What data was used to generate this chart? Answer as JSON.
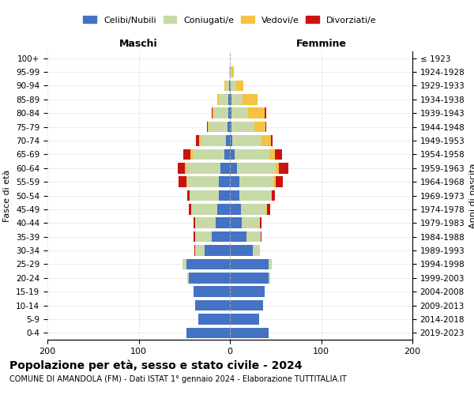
{
  "age_groups": [
    "0-4",
    "5-9",
    "10-14",
    "15-19",
    "20-24",
    "25-29",
    "30-34",
    "35-39",
    "40-44",
    "45-49",
    "50-54",
    "55-59",
    "60-64",
    "65-69",
    "70-74",
    "75-79",
    "80-84",
    "85-89",
    "90-94",
    "95-99",
    "100+"
  ],
  "birth_years": [
    "2019-2023",
    "2014-2018",
    "2009-2013",
    "2004-2008",
    "1999-2003",
    "1994-1998",
    "1989-1993",
    "1984-1988",
    "1979-1983",
    "1974-1978",
    "1969-1973",
    "1964-1968",
    "1959-1963",
    "1954-1958",
    "1949-1953",
    "1944-1948",
    "1939-1943",
    "1934-1938",
    "1929-1933",
    "1924-1928",
    "≤ 1923"
  ],
  "maschi": {
    "celibi": [
      48,
      35,
      38,
      40,
      45,
      48,
      28,
      20,
      16,
      14,
      12,
      12,
      10,
      6,
      4,
      3,
      2,
      2,
      1,
      0,
      0
    ],
    "coniugati": [
      0,
      0,
      0,
      0,
      2,
      4,
      10,
      18,
      22,
      28,
      32,
      35,
      38,
      35,
      28,
      20,
      15,
      10,
      4,
      1,
      0
    ],
    "vedovi": [
      0,
      0,
      0,
      0,
      0,
      0,
      0,
      0,
      0,
      0,
      0,
      1,
      1,
      2,
      2,
      1,
      2,
      2,
      1,
      0,
      0
    ],
    "divorziati": [
      0,
      0,
      0,
      0,
      0,
      0,
      1,
      2,
      2,
      3,
      3,
      8,
      8,
      8,
      3,
      1,
      1,
      0,
      0,
      0,
      0
    ]
  },
  "femmine": {
    "nubili": [
      42,
      32,
      36,
      38,
      42,
      42,
      25,
      18,
      13,
      12,
      10,
      10,
      8,
      5,
      3,
      2,
      2,
      2,
      1,
      0,
      0
    ],
    "coniugate": [
      0,
      0,
      0,
      0,
      2,
      4,
      8,
      16,
      20,
      28,
      35,
      38,
      42,
      38,
      32,
      25,
      18,
      12,
      6,
      2,
      0
    ],
    "vedove": [
      0,
      0,
      0,
      0,
      0,
      0,
      0,
      0,
      0,
      1,
      1,
      2,
      4,
      6,
      10,
      12,
      18,
      16,
      8,
      2,
      0
    ],
    "divorziate": [
      0,
      0,
      0,
      0,
      0,
      0,
      0,
      1,
      2,
      3,
      3,
      8,
      10,
      8,
      2,
      1,
      2,
      0,
      0,
      0,
      0
    ]
  },
  "colors": {
    "celibi": "#4472C4",
    "coniugati": "#c8d9a8",
    "vedovi": "#f5c242",
    "divorziati": "#cc1111"
  },
  "xlim": 200,
  "title": "Popolazione per età, sesso e stato civile - 2024",
  "subtitle": "COMUNE DI AMANDOLA (FM) - Dati ISTAT 1° gennaio 2024 - Elaborazione TUTTITALIA.IT",
  "ylabel_left": "Fasce di età",
  "ylabel_right": "Anni di nascita",
  "xlabel_left": "Maschi",
  "xlabel_right": "Femmine",
  "legend_labels": [
    "Celibi/Nubili",
    "Coniugati/e",
    "Vedovi/e",
    "Divorziati/e"
  ],
  "bg_color": "#ffffff",
  "grid_color": "#cccccc"
}
